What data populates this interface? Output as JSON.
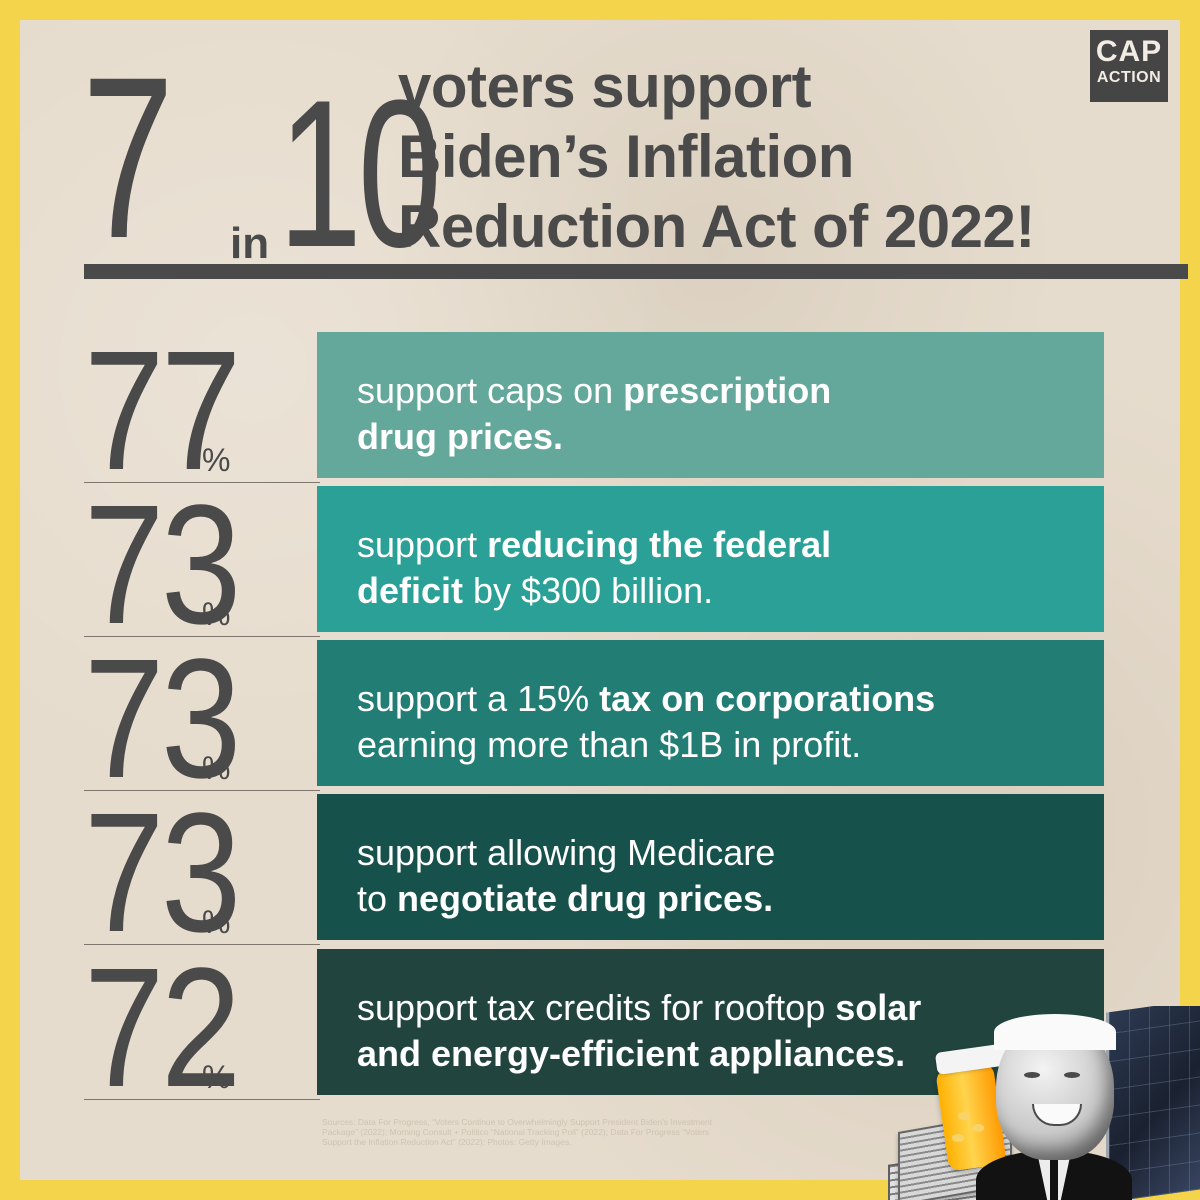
{
  "logo": {
    "line1": "CAP",
    "line2": "ACTION"
  },
  "headline": {
    "big_number": "7",
    "in_text": "in",
    "big_number_total": "10",
    "line1": "voters support",
    "line2": "Biden’s Inflation",
    "line3": "Reduction Act of 2022!"
  },
  "rows": [
    {
      "percent": "77",
      "percent_sign": "%",
      "text_parts": [
        "support caps on ",
        "prescription",
        " drug prices."
      ],
      "bold_parts": [
        false,
        true,
        true
      ],
      "color": "#63a89a"
    },
    {
      "percent": "73",
      "percent_sign": "%",
      "text_parts": [
        "support ",
        "reducing the federal",
        " deficit",
        " by $300 billion."
      ],
      "bold_parts": [
        false,
        true,
        true,
        false
      ],
      "color": "#2aa096"
    },
    {
      "percent": "73",
      "percent_sign": "%",
      "text_parts": [
        "support a 15% ",
        "tax on corporations",
        " earning more than $1B in profit."
      ],
      "bold_parts": [
        false,
        true,
        false
      ],
      "color": "#227d74"
    },
    {
      "percent": "73",
      "percent_sign": "%",
      "text_parts": [
        "support allowing Medicare",
        " to ",
        "negotiate drug prices."
      ],
      "bold_parts": [
        false,
        false,
        true
      ],
      "color": "#16514b"
    },
    {
      "percent": "72",
      "percent_sign": "%",
      "text_parts": [
        "support tax credits for rooftop ",
        "solar",
        " and energy-efficient appliances."
      ],
      "bold_parts": [
        false,
        true,
        true
      ],
      "color": "#21443e"
    }
  ],
  "sources": "Sources: Data For Progress, “Voters Continue to Overwhelmingly Support President Biden’s Investment Package” (2022); Morning Consult + Politico “National Tracking Poll” (2022); Data For Progress “Voters Support the Inflation Reduction Act” (2022); Photos: Getty Images.",
  "colors": {
    "border": "#f4d44a",
    "paper": "#e6dccd",
    "text_dark": "#4a4a4a",
    "bar_1": "#63a89a",
    "bar_2": "#2aa096",
    "bar_3": "#227d74",
    "bar_4": "#16514b",
    "bar_5": "#21443e"
  }
}
